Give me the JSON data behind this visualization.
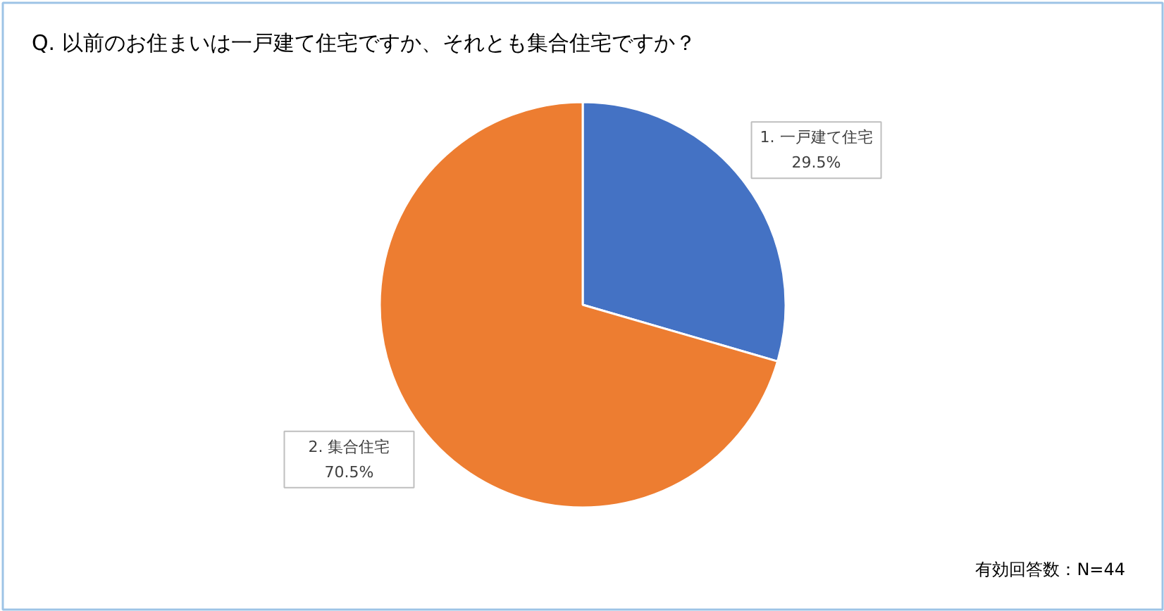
{
  "chart_data": {
    "type": "pie",
    "title": "Q. 以前のお住まいは一戸建て住宅ですか、それとも集合住宅ですか？",
    "categories": [
      "1. 一戸建て住宅",
      "2. 集合住宅"
    ],
    "values": [
      29.5,
      70.5
    ],
    "colors": [
      "#4472c4",
      "#ed7d31"
    ],
    "value_labels": [
      "29.5%",
      "70.5%"
    ],
    "annotations": [
      "有効回答数：N=44"
    ]
  }
}
